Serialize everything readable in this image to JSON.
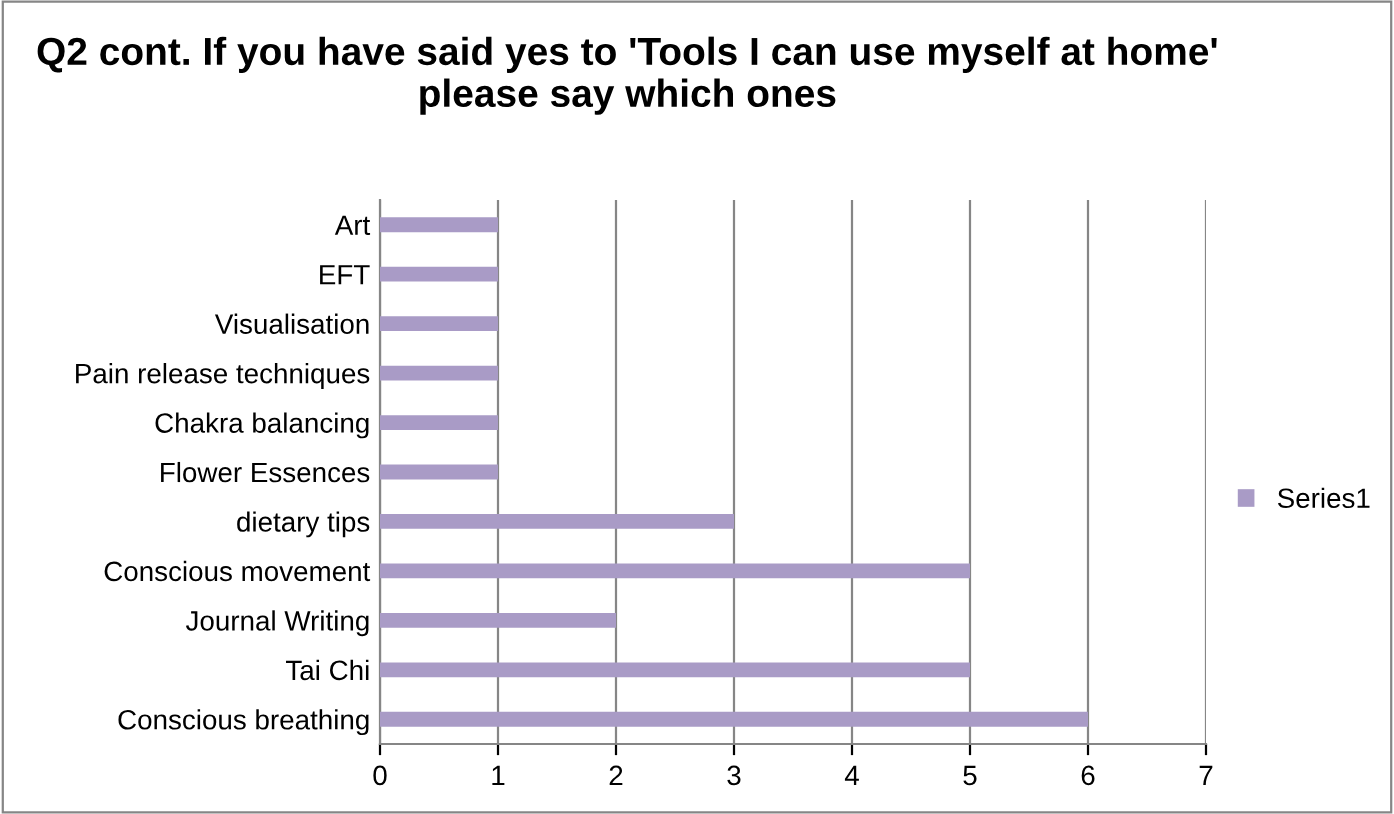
{
  "chart_data": {
    "type": "bar",
    "orientation": "horizontal",
    "title": "Q2 cont. If you have said yes to 'Tools I can use myself at home' please say which ones",
    "categories": [
      "Art",
      "EFT",
      "Visualisation",
      "Pain release techniques",
      "Chakra balancing",
      "Flower Essences",
      "dietary tips",
      "Conscious movement",
      "Journal Writing",
      "Tai Chi",
      "Conscious breathing"
    ],
    "series": [
      {
        "name": "Series1",
        "color": "#a99bc6",
        "values": [
          1,
          1,
          1,
          1,
          1,
          1,
          3,
          5,
          2,
          5,
          6
        ]
      }
    ],
    "xlim": [
      0,
      7
    ],
    "xticks": [
      0,
      1,
      2,
      3,
      4,
      5,
      6,
      7
    ],
    "grid": "x",
    "legend": "right"
  }
}
